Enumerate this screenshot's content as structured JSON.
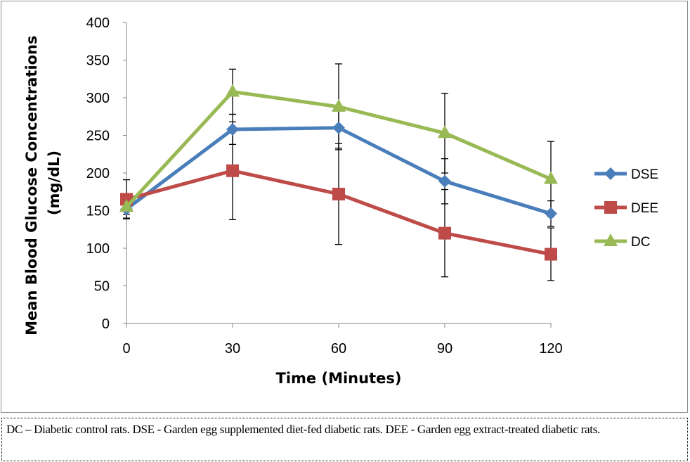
{
  "chart_data": {
    "type": "line",
    "title": "",
    "xlabel": "Time (Minutes)",
    "ylabel": "Mean Blood Glucose Concentrations (mg/dL)",
    "ylabel_lines": [
      "Mean Blood Glucose Concentrations",
      "(mg/dL)"
    ],
    "x": [
      0,
      30,
      60,
      90,
      120
    ],
    "x_ticks": [
      "0",
      "30",
      "60",
      "90",
      "120"
    ],
    "ylim": [
      0,
      400
    ],
    "y_ticks": [
      "0",
      "50",
      "100",
      "150",
      "200",
      "250",
      "300",
      "350",
      "400"
    ],
    "grid": false,
    "legend_position": "right",
    "series": [
      {
        "name": "DSE",
        "color": "#4a7ebb",
        "marker": "diamond",
        "values": [
          152,
          258,
          260,
          189,
          146
        ],
        "errors": [
          12,
          20,
          27,
          30,
          17
        ]
      },
      {
        "name": "DEE",
        "color": "#be4b48",
        "marker": "square",
        "values": [
          165,
          203,
          172,
          120,
          92
        ],
        "errors": [
          26,
          65,
          67,
          58,
          35
        ]
      },
      {
        "name": "DC",
        "color": "#98b954",
        "marker": "triangle",
        "values": [
          155,
          308,
          288,
          253,
          192
        ],
        "errors": [
          10,
          30,
          57,
          53,
          50
        ]
      }
    ]
  },
  "caption": "DC – Diabetic control rats. DSE - Garden egg supplemented diet-fed diabetic rats. DEE - Garden egg extract-treated diabetic rats."
}
